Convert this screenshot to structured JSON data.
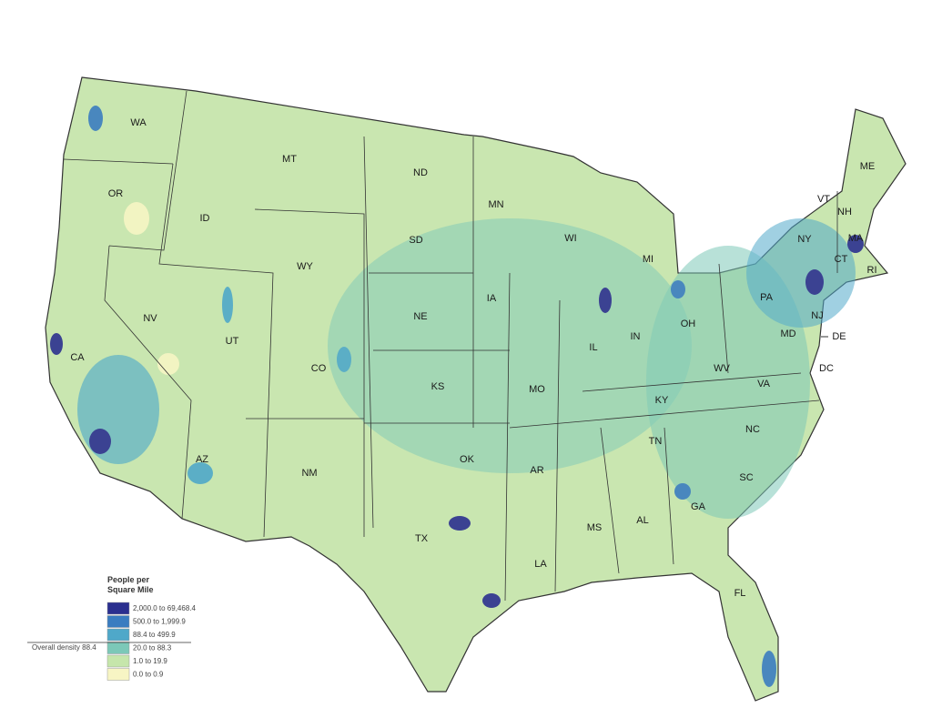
{
  "legend": {
    "title": [
      "People per",
      "Square Mile"
    ],
    "entries": [
      {
        "label": "2,000.0 to 69,468.4",
        "color": "#2b2f8f"
      },
      {
        "label": "500.0 to 1,999.9",
        "color": "#3a7cc0"
      },
      {
        "label": "88.4 to 499.9",
        "color": "#4fa8c9"
      },
      {
        "label": "20.0 to 88.3",
        "color": "#7cc8b8"
      },
      {
        "label": "1.0 to 19.9",
        "color": "#c6e6ab"
      },
      {
        "label": "0.0 to 0.9",
        "color": "#f7f5c4"
      }
    ],
    "overall": "Overall density 88.4"
  },
  "states": [
    "WA",
    "OR",
    "CA",
    "NV",
    "ID",
    "MT",
    "WY",
    "UT",
    "CO",
    "AZ",
    "NM",
    "ND",
    "SD",
    "NE",
    "KS",
    "OK",
    "TX",
    "MN",
    "IA",
    "MO",
    "AR",
    "LA",
    "WI",
    "IL",
    "MI",
    "IN",
    "OH",
    "KY",
    "TN",
    "MS",
    "AL",
    "GA",
    "FL",
    "SC",
    "NC",
    "VA",
    "WV",
    "PA",
    "NY",
    "VT",
    "NH",
    "ME",
    "MA",
    "CT",
    "RI",
    "NJ",
    "MD",
    "DE",
    "DC"
  ]
}
